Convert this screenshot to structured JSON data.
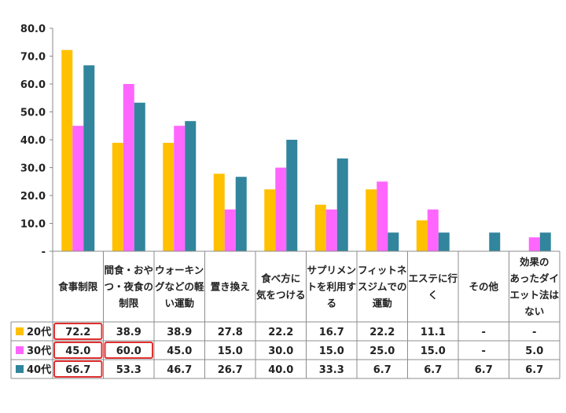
{
  "chart_data": {
    "type": "bar",
    "title": "",
    "xlabel": "",
    "ylabel": "",
    "ylim": [
      0,
      80
    ],
    "y_ticks": [
      "-",
      "10.0",
      "20.0",
      "30.0",
      "40.0",
      "50.0",
      "60.0",
      "70.0",
      "80.0"
    ],
    "grid": false,
    "legend": "table-left",
    "categories": [
      [
        "食事制限"
      ],
      [
        "間食・おや",
        "つ・夜食の",
        "制限"
      ],
      [
        "ウォーキン",
        "グなどの軽",
        "い運動"
      ],
      [
        "置き換え"
      ],
      [
        "食べ方に",
        "気をつける"
      ],
      [
        "サプリメン",
        "トを利用す",
        "る"
      ],
      [
        "フィットネ",
        "スジムでの",
        "運動"
      ],
      [
        "エステに行",
        "く"
      ],
      [
        "その他"
      ],
      [
        "効果の",
        "あったダイ",
        "エット法は",
        "ない"
      ]
    ],
    "series": [
      {
        "name": "20代",
        "color": "#FFC000",
        "values": [
          72.2,
          38.9,
          38.9,
          27.8,
          22.2,
          16.7,
          22.2,
          11.1,
          null,
          null
        ],
        "labels": [
          "72.2",
          "38.9",
          "38.9",
          "27.8",
          "22.2",
          "16.7",
          "22.2",
          "11.1",
          "-",
          "-"
        ]
      },
      {
        "name": "30代",
        "color": "#FF66FF",
        "values": [
          45.0,
          60.0,
          45.0,
          15.0,
          30.0,
          15.0,
          25.0,
          15.0,
          null,
          5.0
        ],
        "labels": [
          "45.0",
          "60.0",
          "45.0",
          "15.0",
          "30.0",
          "15.0",
          "25.0",
          "15.0",
          "-",
          "5.0"
        ]
      },
      {
        "name": "40代",
        "color": "#31859C",
        "values": [
          66.7,
          53.3,
          46.7,
          26.7,
          40.0,
          33.3,
          6.7,
          6.7,
          6.7,
          6.7
        ],
        "labels": [
          "66.7",
          "53.3",
          "46.7",
          "26.7",
          "40.0",
          "33.3",
          "6.7",
          "6.7",
          "6.7",
          "6.7"
        ]
      }
    ],
    "highlights": [
      {
        "series": 0,
        "category": 0,
        "color": "#E03030"
      },
      {
        "series": 1,
        "category": 0,
        "color": "#E03030"
      },
      {
        "series": 2,
        "category": 0,
        "color": "#E03030"
      },
      {
        "series": 1,
        "category": 1,
        "color": "#E03030"
      }
    ]
  }
}
